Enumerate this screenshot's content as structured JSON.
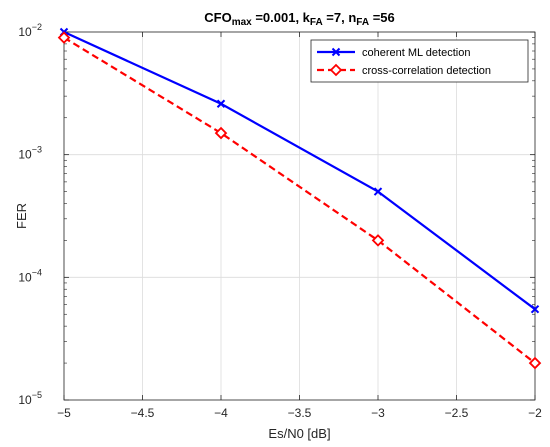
{
  "chart_data": {
    "type": "line",
    "title": {
      "parts": [
        {
          "text": "CFO",
          "sub": false
        },
        {
          "text": "max",
          "sub": true
        },
        {
          "text": " =0.001, k",
          "sub": false
        },
        {
          "text": "FA",
          "sub": true
        },
        {
          "text": " =7, n",
          "sub": false
        },
        {
          "text": "FA",
          "sub": true
        },
        {
          "text": " =56",
          "sub": false
        }
      ]
    },
    "xlabel": "Es/N0 [dB]",
    "ylabel": "FER",
    "xlim": [
      -5,
      -2
    ],
    "ylim": [
      1e-05,
      0.01
    ],
    "yscale": "log",
    "grid": true,
    "legend_position": "top-right",
    "x_ticks": [
      -5,
      -4.5,
      -4,
      -3.5,
      -3,
      -2.5,
      -2
    ],
    "x_tick_labels": [
      "−5",
      "−4.5",
      "−4",
      "−3.5",
      "−3",
      "−2.5",
      "−2"
    ],
    "y_ticks": [
      {
        "value": 0.01,
        "base": "10",
        "exp": "−2"
      },
      {
        "value": 0.001,
        "base": "10",
        "exp": "−3"
      },
      {
        "value": 0.0001,
        "base": "10",
        "exp": "−4"
      },
      {
        "value": 1e-05,
        "base": "10",
        "exp": "−5"
      }
    ],
    "series": [
      {
        "name": "coherent ML detection",
        "color": "#0000ff",
        "line_style": "solid",
        "marker": "x",
        "x": [
          -5,
          -4,
          -3,
          -2
        ],
        "y": [
          0.01,
          0.0026,
          0.0005,
          5.5e-05
        ]
      },
      {
        "name": "cross-correlation detection",
        "color": "#ff0000",
        "line_style": "dashed",
        "marker": "diamond",
        "x": [
          -5,
          -4,
          -3,
          -2
        ],
        "y": [
          0.009,
          0.0015,
          0.0002,
          2e-05
        ]
      }
    ]
  }
}
